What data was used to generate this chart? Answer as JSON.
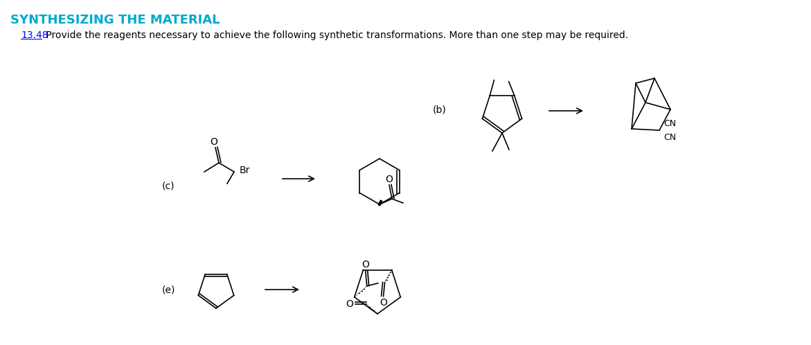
{
  "title": "SYNTHESIZING THE MATERIAL",
  "title_color": "#00AACC",
  "problem_number": "13.48",
  "problem_text": " Provide the reagents necessary to achieve the following synthetic transformations. More than one step may be required.",
  "bg_color": "#ffffff",
  "figsize": [
    11.71,
    4.98
  ],
  "dpi": 100
}
